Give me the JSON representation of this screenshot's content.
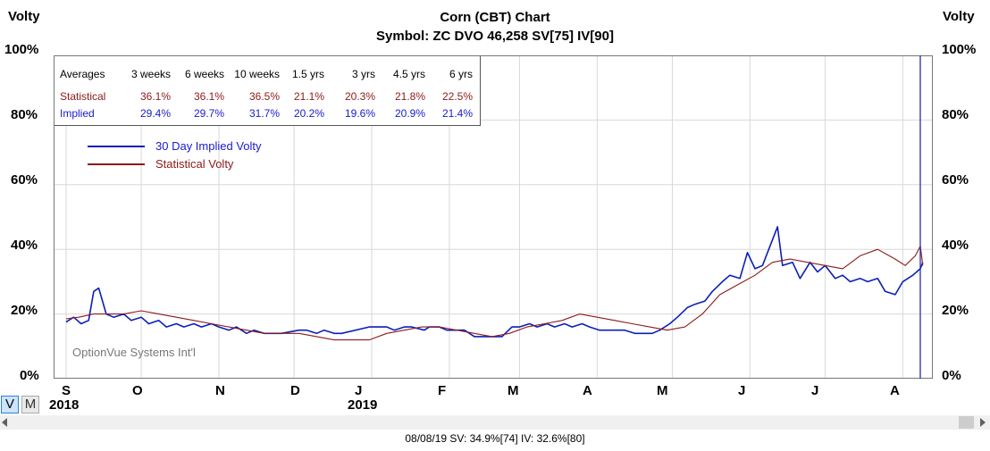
{
  "header": {
    "title": "Corn (CBT) Chart",
    "subtitle": "Symbol: ZC  DVO 46,258  SV[75]  IV[90]"
  },
  "axis": {
    "left_title": "Volty",
    "right_title": "Volty",
    "y_ticks": [
      "100%",
      "80%",
      "60%",
      "40%",
      "20%",
      "0%"
    ]
  },
  "averages": {
    "headers": [
      "Averages",
      "3 weeks",
      "6 weeks",
      "10 weeks",
      "1.5 yrs",
      "3 yrs",
      "4.5 yrs",
      "6 yrs"
    ],
    "statistical": [
      "Statistical",
      "36.1%",
      "36.1%",
      "36.5%",
      "21.1%",
      "20.3%",
      "21.8%",
      "22.5%"
    ],
    "implied": [
      "Implied",
      "29.4%",
      "29.7%",
      "31.7%",
      "20.2%",
      "19.6%",
      "20.9%",
      "21.4%"
    ]
  },
  "legend": {
    "implied": "30 Day Implied Volty",
    "statistical": "Statistical Volty"
  },
  "watermark": "OptionVue Systems Int'l",
  "buttons": {
    "v": "V",
    "m": "M"
  },
  "status_bar": "08/08/19  SV: 34.9%[74]  IV: 32.6%[80]",
  "colors": {
    "implied": "#0b1fb8",
    "statistical": "#8b1a1a",
    "grid": "#d8d8d8",
    "cursor": "#2a2ab0"
  },
  "chart_data": {
    "type": "line",
    "x_month_labels": [
      "S",
      "O",
      "N",
      "D",
      "J",
      "F",
      "M",
      "A",
      "M",
      "J",
      "J",
      "A"
    ],
    "x_year_labels": [
      "2018",
      "2019"
    ],
    "ylim": [
      0,
      100
    ],
    "y_unit": "%",
    "series": [
      {
        "name": "30 Day Implied Volty",
        "points": [
          [
            "2018-09-01",
            17.5
          ],
          [
            "2018-09-04",
            19
          ],
          [
            "2018-09-07",
            17
          ],
          [
            "2018-09-10",
            18
          ],
          [
            "2018-09-12",
            27
          ],
          [
            "2018-09-14",
            28
          ],
          [
            "2018-09-17",
            20
          ],
          [
            "2018-09-20",
            19
          ],
          [
            "2018-09-24",
            20
          ],
          [
            "2018-09-27",
            18
          ],
          [
            "2018-10-01",
            19
          ],
          [
            "2018-10-04",
            17
          ],
          [
            "2018-10-08",
            18
          ],
          [
            "2018-10-11",
            16
          ],
          [
            "2018-10-15",
            17
          ],
          [
            "2018-10-18",
            16
          ],
          [
            "2018-10-22",
            17
          ],
          [
            "2018-10-25",
            16
          ],
          [
            "2018-10-29",
            17
          ],
          [
            "2018-11-01",
            16
          ],
          [
            "2018-11-05",
            15
          ],
          [
            "2018-11-08",
            16
          ],
          [
            "2018-11-12",
            14
          ],
          [
            "2018-11-15",
            15
          ],
          [
            "2018-11-19",
            14
          ],
          [
            "2018-11-26",
            14
          ],
          [
            "2018-12-03",
            15
          ],
          [
            "2018-12-06",
            15
          ],
          [
            "2018-12-10",
            14
          ],
          [
            "2018-12-13",
            15
          ],
          [
            "2018-12-17",
            14
          ],
          [
            "2018-12-20",
            14
          ],
          [
            "2018-12-31",
            16
          ],
          [
            "2019-01-03",
            16
          ],
          [
            "2019-01-07",
            16
          ],
          [
            "2019-01-10",
            15
          ],
          [
            "2019-01-14",
            16
          ],
          [
            "2019-01-17",
            16
          ],
          [
            "2019-01-22",
            15
          ],
          [
            "2019-01-24",
            16
          ],
          [
            "2019-01-28",
            16
          ],
          [
            "2019-01-31",
            15
          ],
          [
            "2019-02-04",
            15
          ],
          [
            "2019-02-07",
            15
          ],
          [
            "2019-02-11",
            13
          ],
          [
            "2019-02-14",
            13
          ],
          [
            "2019-02-19",
            13
          ],
          [
            "2019-02-22",
            13
          ],
          [
            "2019-02-26",
            16
          ],
          [
            "2019-03-01",
            16
          ],
          [
            "2019-03-05",
            17
          ],
          [
            "2019-03-08",
            16
          ],
          [
            "2019-03-12",
            17
          ],
          [
            "2019-03-15",
            16
          ],
          [
            "2019-03-19",
            17
          ],
          [
            "2019-03-22",
            16
          ],
          [
            "2019-03-26",
            17
          ],
          [
            "2019-03-29",
            16
          ],
          [
            "2019-04-02",
            15
          ],
          [
            "2019-04-05",
            15
          ],
          [
            "2019-04-09",
            15
          ],
          [
            "2019-04-12",
            15
          ],
          [
            "2019-04-16",
            14
          ],
          [
            "2019-04-19",
            14
          ],
          [
            "2019-04-23",
            14
          ],
          [
            "2019-04-26",
            15
          ],
          [
            "2019-04-30",
            17
          ],
          [
            "2019-05-03",
            19
          ],
          [
            "2019-05-07",
            22
          ],
          [
            "2019-05-10",
            23
          ],
          [
            "2019-05-14",
            24
          ],
          [
            "2019-05-17",
            27
          ],
          [
            "2019-05-21",
            30
          ],
          [
            "2019-05-24",
            32
          ],
          [
            "2019-05-28",
            31
          ],
          [
            "2019-05-31",
            39
          ],
          [
            "2019-06-03",
            34
          ],
          [
            "2019-06-06",
            35
          ],
          [
            "2019-06-10",
            43
          ],
          [
            "2019-06-12",
            47
          ],
          [
            "2019-06-14",
            35
          ],
          [
            "2019-06-18",
            36
          ],
          [
            "2019-06-21",
            31
          ],
          [
            "2019-06-25",
            36
          ],
          [
            "2019-06-28",
            33
          ],
          [
            "2019-07-01",
            35
          ],
          [
            "2019-07-05",
            31
          ],
          [
            "2019-07-08",
            32
          ],
          [
            "2019-07-11",
            30
          ],
          [
            "2019-07-15",
            31
          ],
          [
            "2019-07-18",
            30
          ],
          [
            "2019-07-22",
            31
          ],
          [
            "2019-07-25",
            27
          ],
          [
            "2019-07-29",
            26
          ],
          [
            "2019-08-01",
            30
          ],
          [
            "2019-08-05",
            32
          ],
          [
            "2019-08-08",
            34
          ],
          [
            "2019-08-09",
            36
          ]
        ]
      },
      {
        "name": "Statistical Volty",
        "points": [
          [
            "2018-09-01",
            18.5
          ],
          [
            "2018-09-06",
            19
          ],
          [
            "2018-09-12",
            20
          ],
          [
            "2018-09-17",
            20
          ],
          [
            "2018-09-24",
            20
          ],
          [
            "2018-10-01",
            21
          ],
          [
            "2018-10-08",
            20
          ],
          [
            "2018-10-15",
            19
          ],
          [
            "2018-10-22",
            18
          ],
          [
            "2018-10-29",
            17
          ],
          [
            "2018-11-05",
            16
          ],
          [
            "2018-11-12",
            15
          ],
          [
            "2018-11-19",
            14
          ],
          [
            "2018-11-26",
            14
          ],
          [
            "2018-12-03",
            14
          ],
          [
            "2018-12-10",
            13
          ],
          [
            "2018-12-17",
            12
          ],
          [
            "2018-12-24",
            12
          ],
          [
            "2018-12-31",
            12
          ],
          [
            "2019-01-07",
            14
          ],
          [
            "2019-01-14",
            15
          ],
          [
            "2019-01-21",
            16
          ],
          [
            "2019-01-28",
            16
          ],
          [
            "2019-02-04",
            15
          ],
          [
            "2019-02-11",
            14
          ],
          [
            "2019-02-18",
            13
          ],
          [
            "2019-02-25",
            14
          ],
          [
            "2019-03-04",
            16
          ],
          [
            "2019-03-11",
            17
          ],
          [
            "2019-03-18",
            18
          ],
          [
            "2019-03-25",
            20
          ],
          [
            "2019-04-01",
            19
          ],
          [
            "2019-04-08",
            18
          ],
          [
            "2019-04-15",
            17
          ],
          [
            "2019-04-22",
            16
          ],
          [
            "2019-04-29",
            15
          ],
          [
            "2019-05-06",
            16
          ],
          [
            "2019-05-13",
            20
          ],
          [
            "2019-05-20",
            26
          ],
          [
            "2019-05-27",
            29
          ],
          [
            "2019-06-03",
            32
          ],
          [
            "2019-06-10",
            36
          ],
          [
            "2019-06-17",
            37
          ],
          [
            "2019-06-24",
            36
          ],
          [
            "2019-07-01",
            35
          ],
          [
            "2019-07-08",
            34
          ],
          [
            "2019-07-15",
            38
          ],
          [
            "2019-07-22",
            40
          ],
          [
            "2019-07-29",
            37
          ],
          [
            "2019-08-02",
            35
          ],
          [
            "2019-08-06",
            38
          ],
          [
            "2019-08-08",
            41
          ],
          [
            "2019-08-09",
            35
          ]
        ]
      }
    ]
  }
}
